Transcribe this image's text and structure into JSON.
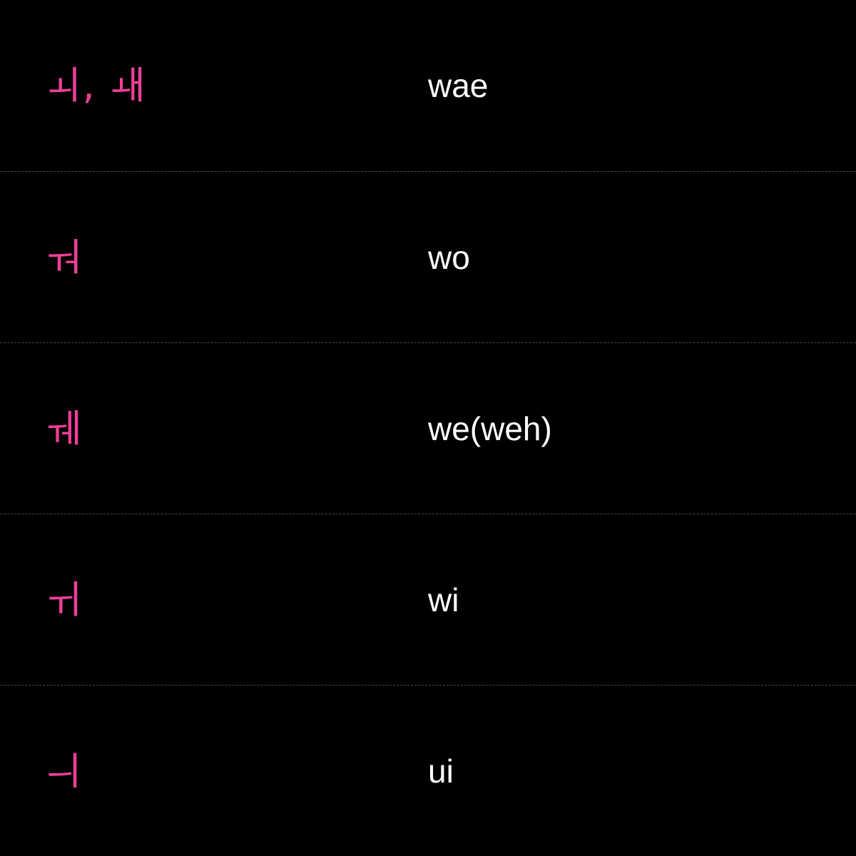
{
  "colors": {
    "background": "#000000",
    "hangul_accent": "#ef3f97",
    "romanization_text": "#ffffff",
    "divider": "#4a4a4a"
  },
  "rows": [
    {
      "hangul": "ㅚ, ㅙ",
      "roman": "wae"
    },
    {
      "hangul": "ㅝ",
      "roman": "wo"
    },
    {
      "hangul": "ㅞ",
      "roman": "we(weh)"
    },
    {
      "hangul": "ㅟ",
      "roman": "wi"
    },
    {
      "hangul": "ㅢ",
      "roman": "ui"
    }
  ]
}
